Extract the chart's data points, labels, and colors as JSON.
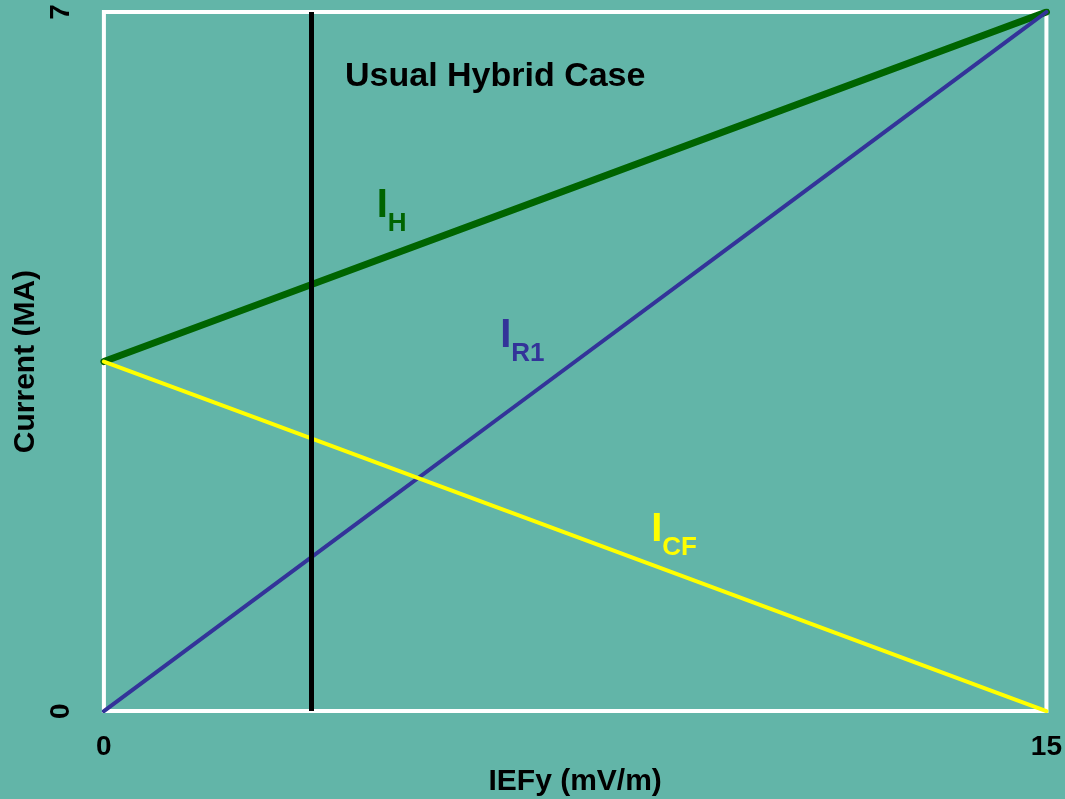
{
  "chart_data": {
    "type": "line",
    "title": "Usual Hybrid Case",
    "xlabel": "IEFy (mV/m)",
    "ylabel": "Current (MA)",
    "x": [
      0,
      15
    ],
    "xlim": [
      0,
      15
    ],
    "xticks": [
      0,
      15
    ],
    "ylim": [
      0,
      7
    ],
    "yticks": [
      0,
      7
    ],
    "grid": false,
    "legend": false,
    "marker": "none",
    "line_style": "solid",
    "series": [
      {
        "name": "I$_{H}$",
        "color": "#006400",
        "values": [
          3.5,
          7
        ]
      },
      {
        "name": "I$_{R1}$",
        "color": "#333399",
        "values": [
          0,
          7
        ]
      },
      {
        "name": "I$_{CF}$",
        "color": "#ffff00",
        "values": [
          3.5,
          0
        ]
      }
    ],
    "ref_lines": [
      {
        "axis": "x",
        "value": 3.3,
        "color": "#000000"
      }
    ]
  }
}
